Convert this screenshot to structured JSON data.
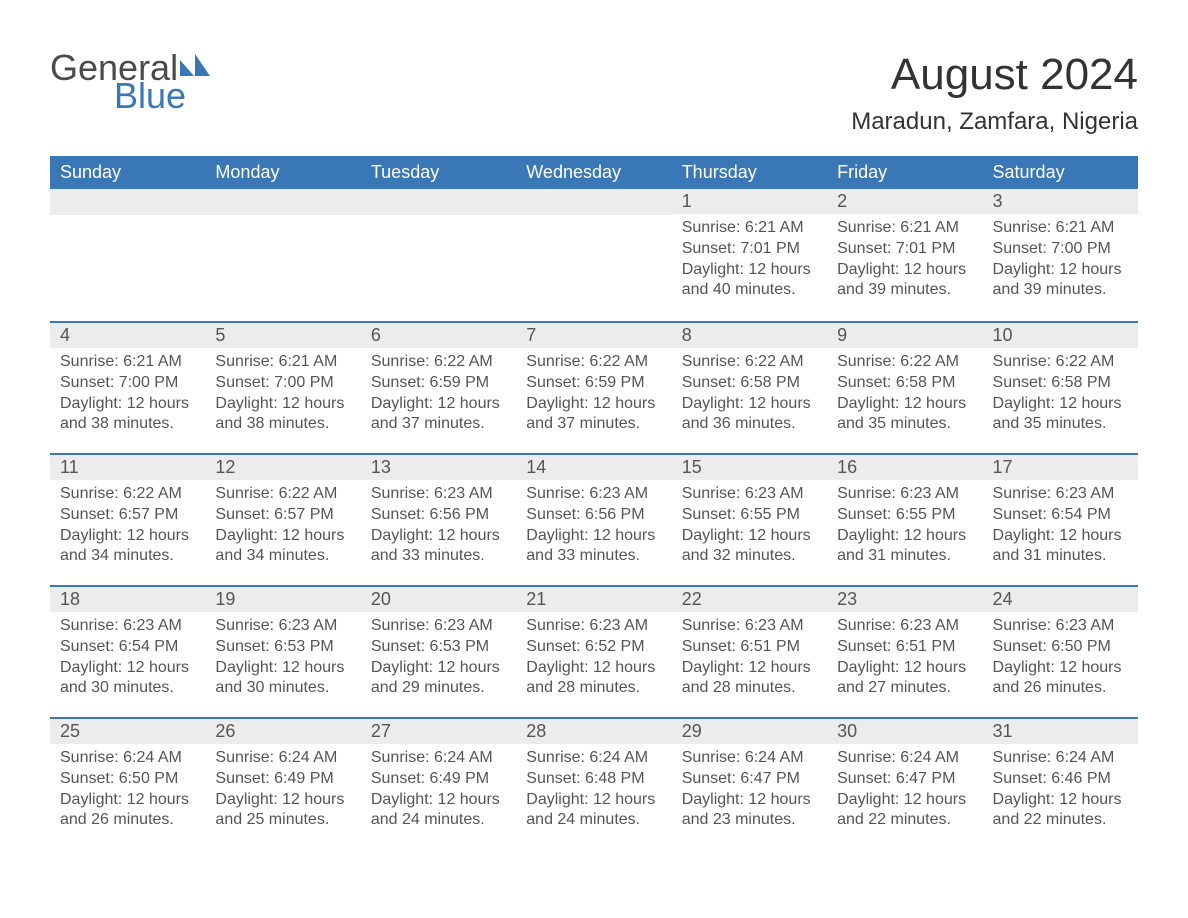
{
  "logo": {
    "text1": "General",
    "text2": "Blue",
    "icon_color": "#3a77b7"
  },
  "title": "August 2024",
  "location": "Maradun, Zamfara, Nigeria",
  "colors": {
    "header_bg": "#3a77b7",
    "header_text": "#ffffff",
    "daynum_bg": "#ececec",
    "daynum_border": "#3a77b7",
    "body_text": "#555555",
    "title_text": "#333333",
    "page_bg": "#ffffff"
  },
  "weekdays": [
    "Sunday",
    "Monday",
    "Tuesday",
    "Wednesday",
    "Thursday",
    "Friday",
    "Saturday"
  ],
  "leading_blanks": 4,
  "days": [
    {
      "n": 1,
      "sunrise": "6:21 AM",
      "sunset": "7:01 PM",
      "daylight": "12 hours and 40 minutes."
    },
    {
      "n": 2,
      "sunrise": "6:21 AM",
      "sunset": "7:01 PM",
      "daylight": "12 hours and 39 minutes."
    },
    {
      "n": 3,
      "sunrise": "6:21 AM",
      "sunset": "7:00 PM",
      "daylight": "12 hours and 39 minutes."
    },
    {
      "n": 4,
      "sunrise": "6:21 AM",
      "sunset": "7:00 PM",
      "daylight": "12 hours and 38 minutes."
    },
    {
      "n": 5,
      "sunrise": "6:21 AM",
      "sunset": "7:00 PM",
      "daylight": "12 hours and 38 minutes."
    },
    {
      "n": 6,
      "sunrise": "6:22 AM",
      "sunset": "6:59 PM",
      "daylight": "12 hours and 37 minutes."
    },
    {
      "n": 7,
      "sunrise": "6:22 AM",
      "sunset": "6:59 PM",
      "daylight": "12 hours and 37 minutes."
    },
    {
      "n": 8,
      "sunrise": "6:22 AM",
      "sunset": "6:58 PM",
      "daylight": "12 hours and 36 minutes."
    },
    {
      "n": 9,
      "sunrise": "6:22 AM",
      "sunset": "6:58 PM",
      "daylight": "12 hours and 35 minutes."
    },
    {
      "n": 10,
      "sunrise": "6:22 AM",
      "sunset": "6:58 PM",
      "daylight": "12 hours and 35 minutes."
    },
    {
      "n": 11,
      "sunrise": "6:22 AM",
      "sunset": "6:57 PM",
      "daylight": "12 hours and 34 minutes."
    },
    {
      "n": 12,
      "sunrise": "6:22 AM",
      "sunset": "6:57 PM",
      "daylight": "12 hours and 34 minutes."
    },
    {
      "n": 13,
      "sunrise": "6:23 AM",
      "sunset": "6:56 PM",
      "daylight": "12 hours and 33 minutes."
    },
    {
      "n": 14,
      "sunrise": "6:23 AM",
      "sunset": "6:56 PM",
      "daylight": "12 hours and 33 minutes."
    },
    {
      "n": 15,
      "sunrise": "6:23 AM",
      "sunset": "6:55 PM",
      "daylight": "12 hours and 32 minutes."
    },
    {
      "n": 16,
      "sunrise": "6:23 AM",
      "sunset": "6:55 PM",
      "daylight": "12 hours and 31 minutes."
    },
    {
      "n": 17,
      "sunrise": "6:23 AM",
      "sunset": "6:54 PM",
      "daylight": "12 hours and 31 minutes."
    },
    {
      "n": 18,
      "sunrise": "6:23 AM",
      "sunset": "6:54 PM",
      "daylight": "12 hours and 30 minutes."
    },
    {
      "n": 19,
      "sunrise": "6:23 AM",
      "sunset": "6:53 PM",
      "daylight": "12 hours and 30 minutes."
    },
    {
      "n": 20,
      "sunrise": "6:23 AM",
      "sunset": "6:53 PM",
      "daylight": "12 hours and 29 minutes."
    },
    {
      "n": 21,
      "sunrise": "6:23 AM",
      "sunset": "6:52 PM",
      "daylight": "12 hours and 28 minutes."
    },
    {
      "n": 22,
      "sunrise": "6:23 AM",
      "sunset": "6:51 PM",
      "daylight": "12 hours and 28 minutes."
    },
    {
      "n": 23,
      "sunrise": "6:23 AM",
      "sunset": "6:51 PM",
      "daylight": "12 hours and 27 minutes."
    },
    {
      "n": 24,
      "sunrise": "6:23 AM",
      "sunset": "6:50 PM",
      "daylight": "12 hours and 26 minutes."
    },
    {
      "n": 25,
      "sunrise": "6:24 AM",
      "sunset": "6:50 PM",
      "daylight": "12 hours and 26 minutes."
    },
    {
      "n": 26,
      "sunrise": "6:24 AM",
      "sunset": "6:49 PM",
      "daylight": "12 hours and 25 minutes."
    },
    {
      "n": 27,
      "sunrise": "6:24 AM",
      "sunset": "6:49 PM",
      "daylight": "12 hours and 24 minutes."
    },
    {
      "n": 28,
      "sunrise": "6:24 AM",
      "sunset": "6:48 PM",
      "daylight": "12 hours and 24 minutes."
    },
    {
      "n": 29,
      "sunrise": "6:24 AM",
      "sunset": "6:47 PM",
      "daylight": "12 hours and 23 minutes."
    },
    {
      "n": 30,
      "sunrise": "6:24 AM",
      "sunset": "6:47 PM",
      "daylight": "12 hours and 22 minutes."
    },
    {
      "n": 31,
      "sunrise": "6:24 AM",
      "sunset": "6:46 PM",
      "daylight": "12 hours and 22 minutes."
    }
  ],
  "labels": {
    "sunrise": "Sunrise:",
    "sunset": "Sunset:",
    "daylight": "Daylight:"
  }
}
